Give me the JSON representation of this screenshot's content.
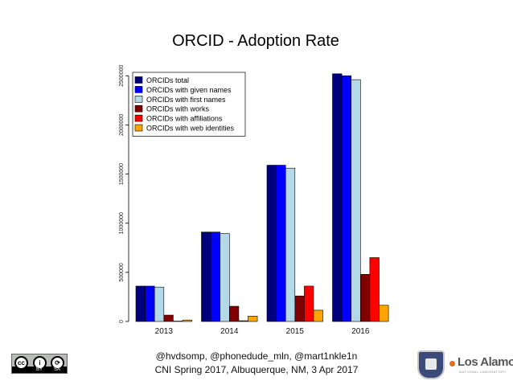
{
  "chart_data": {
    "type": "bar",
    "title": "ORCID - Adoption Rate",
    "xlabel": "",
    "ylabel": "",
    "ylim": [
      0,
      2600000
    ],
    "yticks": [
      "0",
      "500000",
      "1000000",
      "1500000",
      "2000000",
      "2500000"
    ],
    "ytick_values": [
      0,
      500000,
      1000000,
      1500000,
      2000000,
      2500000
    ],
    "categories": [
      "2013",
      "2014",
      "2015",
      "2016"
    ],
    "legend_position": "top-left",
    "series": [
      {
        "name": "ORCIDs total",
        "color": "#00007f",
        "values": [
          360000,
          910000,
          1590000,
          2520000
        ]
      },
      {
        "name": "ORCIDs with given names",
        "color": "#0000ff",
        "values": [
          360000,
          910000,
          1590000,
          2500000
        ]
      },
      {
        "name": "ORCIDs with first names",
        "color": "#b3d9e8",
        "values": [
          350000,
          895000,
          1560000,
          2460000
        ]
      },
      {
        "name": "ORCIDs with works",
        "color": "#800000",
        "values": [
          65000,
          155000,
          260000,
          480000
        ]
      },
      {
        "name": "ORCIDs with affiliations",
        "color": "#ff0000",
        "values": [
          4000,
          8000,
          360000,
          650000
        ]
      },
      {
        "name": "ORCIDs with web identities",
        "color": "#ffa500",
        "values": [
          15000,
          55000,
          115000,
          165000
        ]
      }
    ]
  },
  "footer": {
    "authors": "@hvdsomp, @phonedude_mln, @mart1nkle1n",
    "event": "CNI Spring 2017, Albuquerque, NM, 3 Apr 2017"
  },
  "license_badge": {
    "circle1": "cc",
    "circle2": "i",
    "circle3": "⟳",
    "tag1": "BY",
    "tag2": "SA"
  },
  "institution_logo": {
    "name": "Los Alamos",
    "subtitle": "NATIONAL LABORATORY"
  }
}
